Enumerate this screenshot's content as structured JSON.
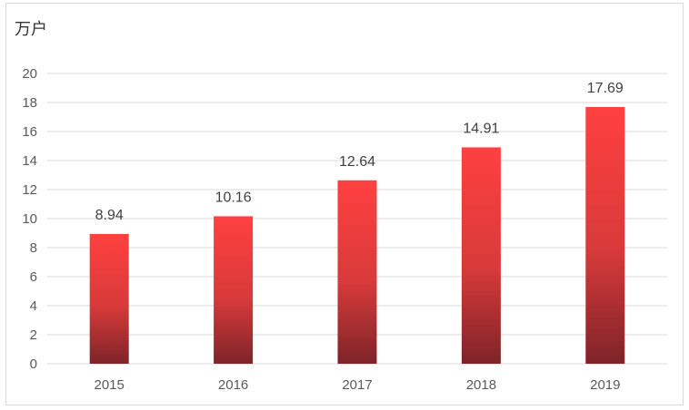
{
  "chart_data": {
    "type": "bar",
    "unit_label": "万户",
    "categories": [
      "2015",
      "2016",
      "2017",
      "2018",
      "2019"
    ],
    "values": [
      8.94,
      10.16,
      12.64,
      14.91,
      17.69
    ],
    "data_labels": [
      "8.94",
      "10.16",
      "12.64",
      "14.91",
      "17.69"
    ],
    "yticks": [
      "0",
      "2",
      "4",
      "6",
      "8",
      "10",
      "12",
      "14",
      "16",
      "18",
      "20"
    ],
    "ylim": [
      0,
      20
    ],
    "grid": true,
    "colors": {
      "bar_top": "#ff4040",
      "bar_mid": "#d93a3a",
      "bar_bottom": "#7e2428",
      "grid": "#d9d9d9",
      "axis": "#d9d9d9"
    }
  }
}
